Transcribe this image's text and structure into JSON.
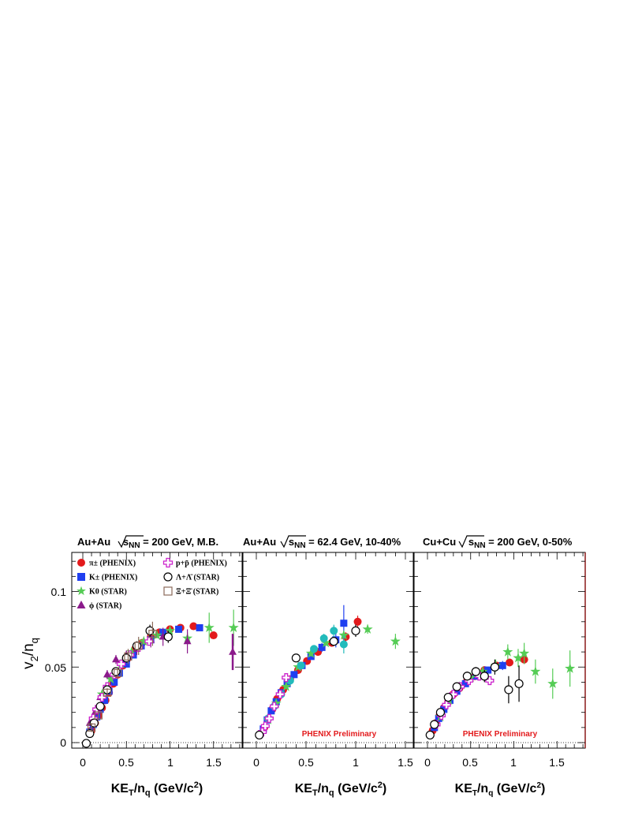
{
  "figure": {
    "ylabel": "v",
    "ylabel_sub": "2",
    "ylabel_tail": "/n",
    "ylabel_tail_sub": "q",
    "y_ticks": [
      "0",
      "0.05",
      "0.1"
    ],
    "x_ticks": [
      "0",
      "0.5",
      "1",
      "1.5"
    ],
    "xlabel_main": "KE",
    "xlabel_sub1": "T",
    "xlabel_mid": "/n",
    "xlabel_sub2": "q",
    "xlabel_unit": " (GeV/c",
    "xlabel_sup": "2",
    "xlabel_close": ")",
    "prelim_label": "PHENIX Preliminary"
  },
  "panels": [
    {
      "title_pre": "Au+Au ",
      "title_s": "s",
      "title_nn": "NN",
      "title_post": " = 200 GeV, M.B.",
      "show_prelim": false
    },
    {
      "title_pre": "Au+Au ",
      "title_s": "s",
      "title_nn": "NN",
      "title_post": " = 62.4 GeV, 10-40%",
      "show_prelim": true
    },
    {
      "title_pre": "Cu+Cu ",
      "title_s": "s",
      "title_nn": "NN",
      "title_post": " = 200 GeV, 0-50%",
      "show_prelim": true
    }
  ],
  "legend": [
    {
      "key": "pi",
      "label": "π± (PHENIX)"
    },
    {
      "key": "K",
      "label": "K± (PHENIX)"
    },
    {
      "key": "K0",
      "label": "K0 (STAR)"
    },
    {
      "key": "phi",
      "label": "ϕ (STAR)"
    },
    {
      "key": "p",
      "label": "p+p̄ (PHENIX)"
    },
    {
      "key": "Lam",
      "label": "Λ+Λ̄ (STAR)"
    },
    {
      "key": "Xi",
      "label": "Ξ+Ξ̄ (STAR)"
    }
  ],
  "chart_data": [
    {
      "type": "scatter",
      "title": "Au+Au √sNN = 200 GeV, M.B.",
      "xlabel": "KE_T/n_q (GeV/c^2)",
      "ylabel": "v_2/n_q",
      "xlim": [
        -0.15,
        1.8
      ],
      "ylim": [
        -0.004,
        0.128
      ],
      "series": [
        {
          "name": "π± (PHENIX)",
          "color": "#e31a1c",
          "marker": "circle",
          "x": [
            0.1,
            0.14,
            0.18,
            0.22,
            0.26,
            0.3,
            0.35,
            0.4,
            0.46,
            0.52,
            0.6,
            0.68,
            0.78,
            0.88,
            1.0,
            1.12,
            1.27,
            1.5
          ],
          "y": [
            0.008,
            0.013,
            0.018,
            0.023,
            0.028,
            0.033,
            0.039,
            0.045,
            0.051,
            0.056,
            0.062,
            0.066,
            0.07,
            0.073,
            0.075,
            0.076,
            0.077,
            0.071
          ],
          "err": [
            0,
            0,
            0,
            0,
            0,
            0,
            0,
            0,
            0,
            0,
            0,
            0,
            0,
            0,
            0,
            0,
            0,
            0.002
          ]
        },
        {
          "name": "K± (PHENIX)",
          "color": "#1f3ff0",
          "marker": "square",
          "x": [
            0.08,
            0.12,
            0.16,
            0.2,
            0.25,
            0.3,
            0.36,
            0.42,
            0.5,
            0.58,
            0.67,
            0.78,
            0.92,
            1.1,
            1.34
          ],
          "y": [
            0.007,
            0.012,
            0.017,
            0.022,
            0.028,
            0.034,
            0.04,
            0.046,
            0.052,
            0.058,
            0.064,
            0.068,
            0.073,
            0.075,
            0.076
          ],
          "err": [
            0,
            0,
            0,
            0,
            0,
            0,
            0,
            0,
            0,
            0,
            0,
            0,
            0,
            0,
            0.002
          ]
        },
        {
          "name": "K0 (STAR)",
          "color": "#55cc55",
          "marker": "star",
          "x": [
            0.22,
            0.32,
            0.44,
            0.56,
            0.7,
            0.85,
            1.0,
            1.2,
            1.45,
            1.73
          ],
          "y": [
            0.032,
            0.042,
            0.052,
            0.06,
            0.067,
            0.071,
            0.074,
            0.069,
            0.076,
            0.076
          ],
          "err": [
            0.001,
            0.001,
            0.001,
            0.001,
            0.002,
            0.002,
            0.002,
            0.004,
            0.01,
            0.012
          ]
        },
        {
          "name": "ϕ (STAR)",
          "color": "#8b1a8b",
          "marker": "triangle",
          "x": [
            0.08,
            0.14,
            0.2,
            0.28,
            0.38,
            0.5,
            0.62,
            0.78,
            0.92,
            1.2,
            1.72
          ],
          "y": [
            0.013,
            0.02,
            0.03,
            0.045,
            0.055,
            0.058,
            0.062,
            0.068,
            0.07,
            0.067,
            0.06
          ],
          "err": [
            0.002,
            0.002,
            0.002,
            0.003,
            0.003,
            0.003,
            0.004,
            0.005,
            0.006,
            0.008,
            0.012
          ]
        },
        {
          "name": "p+p̄ (PHENIX)",
          "color": "#cc22cc",
          "marker": "cross",
          "x": [
            0.12,
            0.16,
            0.22,
            0.28,
            0.36,
            0.44,
            0.54,
            0.64,
            0.76
          ],
          "y": [
            0.016,
            0.022,
            0.03,
            0.037,
            0.045,
            0.052,
            0.058,
            0.063,
            0.067
          ],
          "err": [
            0,
            0,
            0,
            0,
            0,
            0,
            0,
            0,
            0
          ]
        },
        {
          "name": "Λ+Λ̄ (STAR)",
          "color": "#000000",
          "marker": "open-circle",
          "x": [
            0.04,
            0.08,
            0.13,
            0.2,
            0.28,
            0.38,
            0.5,
            0.62,
            0.77,
            0.98
          ],
          "y": [
            -0.0005,
            0.006,
            0.013,
            0.024,
            0.035,
            0.047,
            0.056,
            0.064,
            0.074,
            0.07
          ],
          "err": [
            0.002,
            0.002,
            0.002,
            0.002,
            0.002,
            0.002,
            0.003,
            0.003,
            0.004,
            0.004
          ]
        },
        {
          "name": "Ξ+Ξ̄ (STAR)",
          "color": "#8b6a5a",
          "marker": "open-square",
          "x": [
            0.1,
            0.18,
            0.28,
            0.4,
            0.52,
            0.64,
            0.8
          ],
          "y": [
            0.01,
            0.018,
            0.033,
            0.046,
            0.057,
            0.064,
            0.072
          ],
          "err": [
            0.003,
            0.003,
            0.003,
            0.004,
            0.005,
            0.006,
            0.008
          ]
        }
      ]
    },
    {
      "type": "scatter",
      "title": "Au+Au √sNN = 62.4 GeV, 10-40%",
      "xlabel": "KE_T/n_q (GeV/c^2)",
      "xlim": [
        -0.15,
        1.55
      ],
      "ylim": [
        -0.004,
        0.128
      ],
      "series": [
        {
          "name": "π± (PHENIX)",
          "color": "#e31a1c",
          "marker": "circle",
          "x": [
            0.08,
            0.12,
            0.16,
            0.21,
            0.27,
            0.34,
            0.42,
            0.51,
            0.62,
            0.76,
            0.9,
            1.02
          ],
          "y": [
            0.01,
            0.016,
            0.022,
            0.029,
            0.035,
            0.042,
            0.048,
            0.054,
            0.06,
            0.066,
            0.07,
            0.08
          ],
          "err": [
            0,
            0,
            0,
            0,
            0,
            0,
            0,
            0,
            0.001,
            0.002,
            0.003,
            0.004
          ]
        },
        {
          "name": "K± (PHENIX)",
          "color": "#1f3ff0",
          "marker": "square",
          "x": [
            0.07,
            0.11,
            0.15,
            0.2,
            0.25,
            0.31,
            0.38,
            0.46,
            0.55,
            0.66,
            0.8,
            0.88
          ],
          "y": [
            0.009,
            0.015,
            0.021,
            0.027,
            0.033,
            0.039,
            0.045,
            0.051,
            0.057,
            0.063,
            0.068,
            0.079
          ],
          "err": [
            0,
            0,
            0,
            0,
            0,
            0,
            0,
            0,
            0.002,
            0.003,
            0.005,
            0.012
          ]
        },
        {
          "name": "K0 (STAR)",
          "color": "#55cc55",
          "marker": "star",
          "x": [
            0.12,
            0.2,
            0.3,
            0.42,
            0.55,
            0.7,
            0.88,
            1.12,
            1.4
          ],
          "y": [
            0.015,
            0.026,
            0.037,
            0.05,
            0.059,
            0.066,
            0.071,
            0.075,
            0.067
          ],
          "err": [
            0.001,
            0.001,
            0.001,
            0.001,
            0.002,
            0.002,
            0.003,
            0.003,
            0.005
          ]
        },
        {
          "name": "p/p̄ (teal)",
          "color": "#22bbbb",
          "marker": "circle",
          "x": [
            0.12,
            0.18,
            0.25,
            0.34,
            0.45,
            0.58,
            0.68,
            0.78,
            0.88
          ],
          "y": [
            0.016,
            0.024,
            0.032,
            0.041,
            0.051,
            0.062,
            0.069,
            0.074,
            0.065
          ],
          "err": [
            0,
            0,
            0,
            0,
            0.001,
            0.002,
            0.003,
            0.004,
            0.006
          ]
        },
        {
          "name": "p+p̄ (PHENIX)",
          "color": "#cc22cc",
          "marker": "cross",
          "x": [
            0.06,
            0.09,
            0.13,
            0.18,
            0.24,
            0.3
          ],
          "y": [
            0.007,
            0.011,
            0.016,
            0.024,
            0.032,
            0.043
          ],
          "err": [
            0,
            0,
            0,
            0,
            0,
            0
          ]
        },
        {
          "name": "Λ+Λ̄ (STAR)",
          "color": "#000000",
          "marker": "open-circle",
          "x": [
            0.03,
            0.4,
            0.78,
            1.0
          ],
          "y": [
            0.005,
            0.056,
            0.067,
            0.074
          ],
          "err": [
            0.002,
            0.002,
            0.003,
            0.004
          ]
        }
      ]
    },
    {
      "type": "scatter",
      "title": "Cu+Cu √sNN = 200 GeV, 0-50%",
      "xlabel": "KE_T/n_q (GeV/c^2)",
      "xlim": [
        -0.15,
        1.85
      ],
      "ylim": [
        -0.004,
        0.128
      ],
      "series": [
        {
          "name": "π± (PHENIX)",
          "color": "#e31a1c",
          "marker": "circle",
          "x": [
            0.06,
            0.1,
            0.14,
            0.19,
            0.24,
            0.3,
            0.37,
            0.45,
            0.55,
            0.66,
            0.8,
            0.95,
            1.12
          ],
          "y": [
            0.008,
            0.013,
            0.018,
            0.023,
            0.027,
            0.032,
            0.036,
            0.04,
            0.044,
            0.048,
            0.051,
            0.053,
            0.055
          ],
          "err": [
            0,
            0,
            0,
            0,
            0,
            0,
            0,
            0,
            0,
            0.001,
            0.001,
            0.002,
            0.003
          ]
        },
        {
          "name": "K± (PHENIX)",
          "color": "#1f3ff0",
          "marker": "square",
          "x": [
            0.08,
            0.13,
            0.19,
            0.26,
            0.34,
            0.44,
            0.56,
            0.7,
            0.87
          ],
          "y": [
            0.01,
            0.016,
            0.022,
            0.028,
            0.034,
            0.039,
            0.044,
            0.048,
            0.051
          ],
          "err": [
            0,
            0,
            0,
            0,
            0,
            0,
            0.001,
            0.002,
            0.003
          ]
        },
        {
          "name": "K0 (STAR)",
          "color": "#55cc55",
          "marker": "star",
          "x": [
            0.15,
            0.25,
            0.37,
            0.5,
            0.64,
            0.79,
            0.93,
            1.05,
            1.12,
            1.25,
            1.45,
            1.65
          ],
          "y": [
            0.017,
            0.028,
            0.037,
            0.043,
            0.047,
            0.051,
            0.06,
            0.056,
            0.059,
            0.047,
            0.039,
            0.049
          ],
          "err": [
            0.001,
            0.001,
            0.002,
            0.002,
            0.003,
            0.004,
            0.005,
            0.006,
            0.007,
            0.008,
            0.01,
            0.012
          ]
        },
        {
          "name": "p+p̄ (PHENIX)",
          "color": "#cc22cc",
          "marker": "cross",
          "x": [
            0.1,
            0.16,
            0.22,
            0.3,
            0.38,
            0.48,
            0.6,
            0.72
          ],
          "y": [
            0.012,
            0.018,
            0.025,
            0.032,
            0.037,
            0.041,
            0.044,
            0.041
          ],
          "err": [
            0,
            0,
            0,
            0,
            0,
            0,
            0.001,
            0.002
          ]
        },
        {
          "name": "Λ+Λ̄ (STAR)",
          "color": "#000000",
          "marker": "open-circle",
          "x": [
            0.03,
            0.08,
            0.15,
            0.24,
            0.34,
            0.46,
            0.56,
            0.66,
            0.78,
            0.94,
            1.06
          ],
          "y": [
            0.005,
            0.012,
            0.02,
            0.03,
            0.037,
            0.044,
            0.047,
            0.044,
            0.05,
            0.035,
            0.039
          ],
          "err": [
            0.001,
            0.001,
            0.002,
            0.002,
            0.002,
            0.003,
            0.003,
            0.004,
            0.005,
            0.009,
            0.012
          ]
        }
      ]
    }
  ]
}
